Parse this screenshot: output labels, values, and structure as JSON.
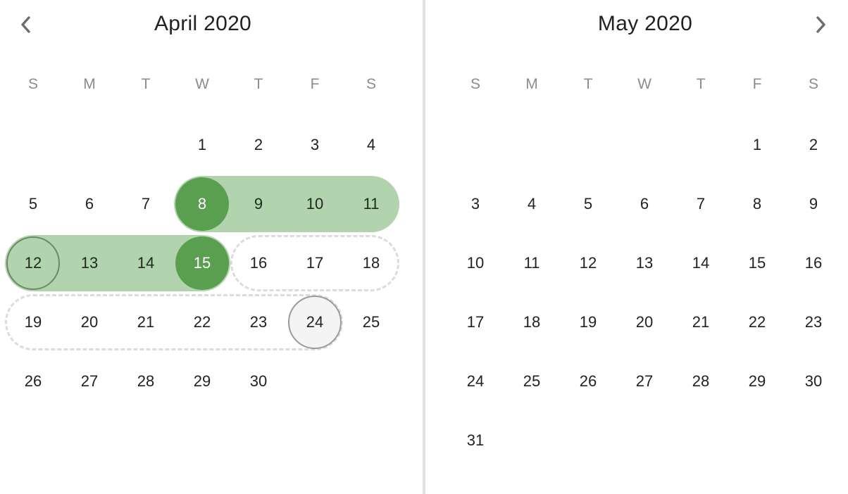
{
  "navigation": {
    "prev_icon": "chevron-left-icon",
    "next_icon": "chevron-right-icon"
  },
  "colors": {
    "range_fill": "#b1d3ad",
    "selected_fill": "#5a9e50",
    "preview_border": "#dcdcdc",
    "hover_fill": "#f4f4f4"
  },
  "calendars": [
    {
      "title": "April 2020",
      "weekdays": [
        "S",
        "M",
        "T",
        "W",
        "T",
        "F",
        "S"
      ],
      "first_weekday_index": 3,
      "days_in_month": 30,
      "range_days": [
        8,
        9,
        10,
        11,
        12,
        13,
        14,
        15
      ],
      "range_start_days": [
        8,
        12
      ],
      "selected_days": [
        8,
        15
      ],
      "preview_days": [
        16,
        17,
        18,
        19,
        20,
        21,
        22,
        23,
        24
      ],
      "hovered_day": 24
    },
    {
      "title": "May 2020",
      "weekdays": [
        "S",
        "M",
        "T",
        "W",
        "T",
        "F",
        "S"
      ],
      "first_weekday_index": 5,
      "days_in_month": 31,
      "range_days": [],
      "range_start_days": [],
      "selected_days": [],
      "preview_days": [],
      "hovered_day": null
    }
  ]
}
